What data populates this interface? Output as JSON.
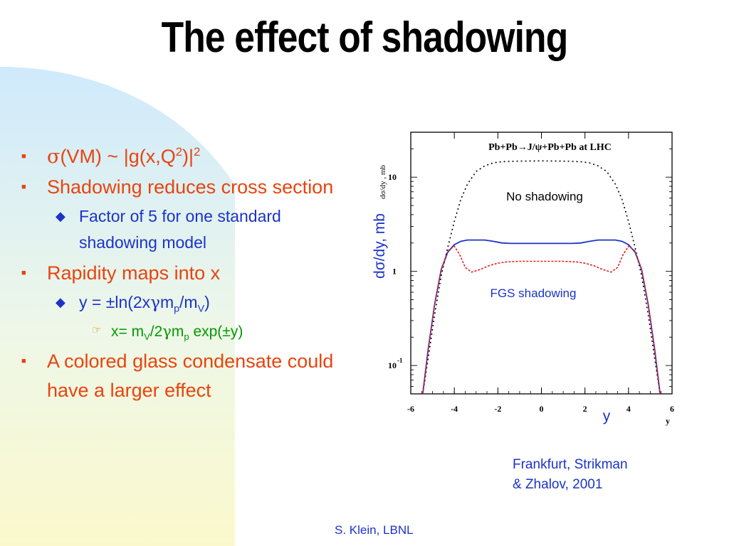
{
  "title": "The effect of shadowing",
  "bullets": [
    {
      "level": 1,
      "parts": [
        {
          "t": "σ",
          "greek": true
        },
        {
          "t": "(VM) ~ |g(x,Q"
        },
        {
          "t": "2",
          "sup": true
        },
        {
          "t": ")|"
        },
        {
          "t": "2",
          "sup": true
        }
      ]
    },
    {
      "level": 1,
      "parts": [
        {
          "t": "Shadowing reduces cross section"
        }
      ]
    },
    {
      "level": 2,
      "parts": [
        {
          "t": "Factor of 5 for one standard shadowing model"
        }
      ]
    },
    {
      "level": 1,
      "parts": [
        {
          "t": "Rapidity maps into x"
        }
      ]
    },
    {
      "level": 2,
      "parts": [
        {
          "t": "y = ±ln(2x"
        },
        {
          "t": "γ",
          "greek": true
        },
        {
          "t": "m"
        },
        {
          "t": "p",
          "sub": true
        },
        {
          "t": "/m"
        },
        {
          "t": "V",
          "sub": true
        },
        {
          "t": ")"
        }
      ]
    },
    {
      "level": 3,
      "parts": [
        {
          "t": "x= m"
        },
        {
          "t": "V",
          "sub": true
        },
        {
          "t": "/2"
        },
        {
          "t": "γ",
          "greek": true
        },
        {
          "t": "m"
        },
        {
          "t": "p",
          "sub": true
        },
        {
          "t": " exp(±y)"
        }
      ]
    },
    {
      "level": 1,
      "parts": [
        {
          "t": "A colored glass condensate could have a larger effect"
        }
      ]
    }
  ],
  "chart_data": {
    "type": "line",
    "title": "Pb+Pb→J/ψ+Pb+Pb at LHC",
    "xlabel": "y",
    "ylabel": "dσ/dy , mb",
    "xlabel_overlay": "y",
    "ylabel_overlay": "dσ/dy, mb",
    "xlim": [
      -6,
      6
    ],
    "ylim": [
      0.05,
      30
    ],
    "yscale": "log",
    "xticks": [
      -6,
      -4,
      -2,
      0,
      2,
      4,
      6
    ],
    "yticks": [
      {
        "value": 0.1,
        "label": "10",
        "exp": "-1"
      },
      {
        "value": 1,
        "label": "1",
        "exp": ""
      },
      {
        "value": 10,
        "label": "10",
        "exp": ""
      }
    ],
    "annotations": [
      "No shadowing",
      "FGS shadowing"
    ],
    "series": [
      {
        "name": "No shadowing",
        "color": "#000000",
        "style": "dotted",
        "x": [
          -5.45,
          -5.2,
          -4.9,
          -4.6,
          -4.3,
          -4,
          -3.7,
          -3.4,
          -3,
          -2.6,
          -2.2,
          -1.8,
          -1,
          0,
          1,
          1.8,
          2.2,
          2.6,
          3,
          3.4,
          3.7,
          4,
          4.3,
          4.6,
          4.9,
          5.2,
          5.45
        ],
        "y": [
          0.05,
          0.12,
          0.35,
          0.9,
          1.8,
          3.4,
          5.8,
          8.4,
          11.5,
          13.2,
          14.2,
          14.6,
          14.8,
          14.9,
          14.8,
          14.6,
          14.2,
          13.2,
          11.5,
          8.4,
          5.8,
          3.4,
          1.8,
          0.9,
          0.35,
          0.12,
          0.05
        ]
      },
      {
        "name": "",
        "color": "#1b33c9",
        "style": "solid",
        "x": [
          -5.45,
          -5.2,
          -4.9,
          -4.6,
          -4.3,
          -4.0,
          -3.7,
          -3.4,
          -3.0,
          -2.6,
          -2.2,
          -1.8,
          -1.4,
          -1.0,
          0,
          1.0,
          1.4,
          1.8,
          2.2,
          2.6,
          3.0,
          3.4,
          3.7,
          4.0,
          4.3,
          4.6,
          4.9,
          5.2,
          5.45
        ],
        "y": [
          0.05,
          0.15,
          0.45,
          1.05,
          1.6,
          1.92,
          2.08,
          2.15,
          2.15,
          2.15,
          2.08,
          2.0,
          1.98,
          1.98,
          1.98,
          1.98,
          1.98,
          2.0,
          2.08,
          2.15,
          2.15,
          2.15,
          2.08,
          1.92,
          1.6,
          1.05,
          0.45,
          0.15,
          0.05
        ]
      },
      {
        "name": "FGS shadowing",
        "color": "#e02020",
        "style": "dashed",
        "x": [
          -5.45,
          -5.2,
          -4.9,
          -4.6,
          -4.3,
          -4.0,
          -3.75,
          -3.5,
          -3.2,
          -2.8,
          -2.4,
          -2.0,
          -1.6,
          -1.0,
          0,
          1.0,
          1.6,
          2.0,
          2.4,
          2.8,
          3.2,
          3.5,
          3.75,
          4.0,
          4.3,
          4.6,
          4.9,
          5.2,
          5.45
        ],
        "y": [
          0.05,
          0.15,
          0.45,
          1.05,
          1.65,
          1.85,
          1.5,
          1.1,
          0.98,
          1.05,
          1.15,
          1.22,
          1.26,
          1.28,
          1.28,
          1.28,
          1.26,
          1.22,
          1.15,
          1.05,
          0.98,
          1.1,
          1.5,
          1.85,
          1.65,
          1.05,
          0.45,
          0.15,
          0.05
        ]
      }
    ]
  },
  "credit": [
    "Frankfurt, Strikman",
    "& Zhalov, 2001"
  ],
  "footer": "S. Klein, LBNL",
  "colors": {
    "title": "#000000",
    "level1": "#e8440e",
    "level2": "#1b33c9",
    "level3": "#009a00",
    "annotation": "#1b33c9"
  }
}
